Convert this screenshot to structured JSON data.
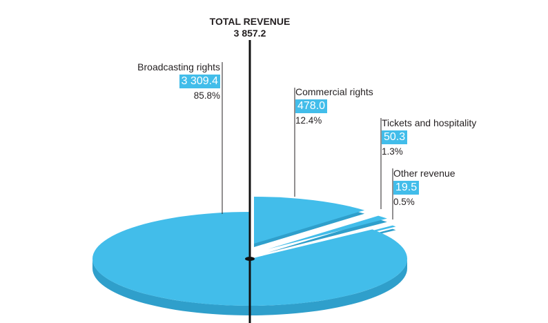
{
  "colors": {
    "slice": "#42bdea",
    "slice_dark": "#2f9fcb",
    "text": "#231f20",
    "value_bg": "#42bdea"
  },
  "chart_data": {
    "type": "pie",
    "title": "TOTAL REVENUE",
    "total": "3 857.2",
    "slices": [
      {
        "name": "Broadcasting rights",
        "value": 3309.4,
        "value_label": "3 309.4",
        "percent_label": "85.8%"
      },
      {
        "name": "Commercial rights",
        "value": 478.0,
        "value_label": "478.0",
        "percent_label": "12.4%"
      },
      {
        "name": "Tickets and hospitality",
        "value": 50.3,
        "value_label": "50.3",
        "percent_label": "1.3%"
      },
      {
        "name": "Other revenue",
        "value": 19.5,
        "value_label": "19.5",
        "percent_label": "0.5%"
      }
    ]
  }
}
